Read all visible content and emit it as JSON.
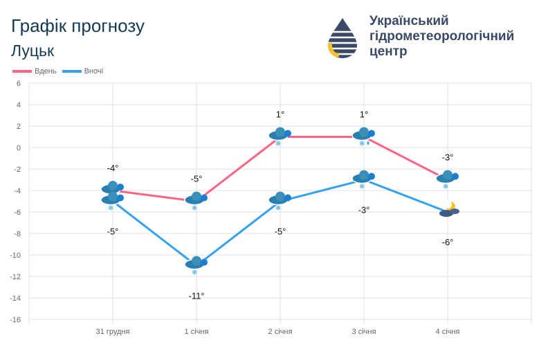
{
  "header": {
    "title": "Графік прогнозу",
    "city": "Луцьк"
  },
  "org": {
    "line1": "Український",
    "line2": "гідрометеорологічний",
    "line3": "центр"
  },
  "chart_data": {
    "type": "line",
    "categories": [
      "31 грудня",
      "1 січня",
      "2 січня",
      "3 січня",
      "4 січня"
    ],
    "series": [
      {
        "name": "Вдень",
        "color": "#ff6384",
        "values": [
          -4,
          -5,
          1,
          1,
          -3
        ],
        "labels": [
          "-4°",
          "-5°",
          "1°",
          "1°",
          "-3°"
        ],
        "icons": [
          "cloud-snow",
          "cloud-snow",
          "cloud-snow",
          "cloud-rain-snow",
          "cloud-snow"
        ]
      },
      {
        "name": "Вночі",
        "color": "#36a2eb",
        "values": [
          -5,
          -11,
          -5,
          -3,
          -6
        ],
        "labels": [
          "-5°",
          "-11°",
          "-5°",
          "-3°",
          "-6°"
        ],
        "icons": [
          "cloud-snow",
          "cloud-snow",
          "cloud-snow",
          "cloud-snow",
          "moon-cloud"
        ]
      }
    ],
    "ylim": [
      -16,
      6
    ],
    "yticks": [
      "6",
      "4",
      "2",
      "0",
      "-2",
      "-4",
      "-6",
      "-8",
      "-10",
      "-12",
      "-14",
      "-16"
    ],
    "grid": true,
    "legend": "top-left"
  }
}
